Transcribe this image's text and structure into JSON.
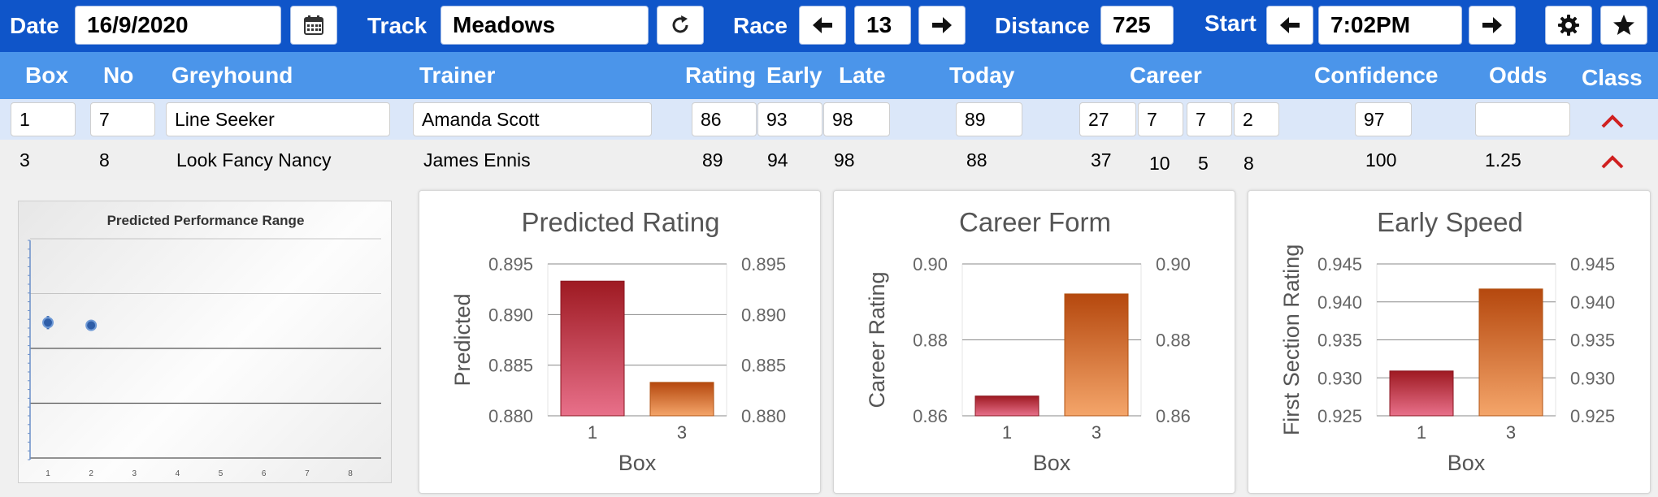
{
  "toolbar": {
    "date_label": "Date",
    "date_value": "16/9/2020",
    "track_label": "Track",
    "track_value": "Meadows",
    "race_label": "Race",
    "race_value": "13",
    "distance_label": "Distance",
    "distance_value": "725",
    "start_label": "Start",
    "start_value": "7:02PM",
    "icons": [
      "calendar-icon",
      "refresh-icon",
      "arrow-left-icon",
      "arrow-right-icon",
      "gear-icon",
      "star-icon"
    ]
  },
  "table": {
    "headers": {
      "box": "Box",
      "no": "No",
      "greyhound": "Greyhound",
      "trainer": "Trainer",
      "rating": "Rating",
      "early": "Early",
      "late": "Late",
      "today": "Today",
      "career": "Career",
      "confidence": "Confidence",
      "odds": "Odds",
      "class": "Class"
    },
    "rows": [
      {
        "box": "1",
        "no": "7",
        "greyhound": "Line Seeker",
        "trainer": "Amanda Scott",
        "rating": "86",
        "early": "93",
        "late": "98",
        "today": "89",
        "career_starts": "27",
        "career_wins": "7",
        "career_seconds": "7",
        "career_thirds": "2",
        "confidence": "97",
        "odds": ""
      },
      {
        "box": "3",
        "no": "8",
        "greyhound": "Look Fancy Nancy",
        "trainer": "James Ennis",
        "rating": "89",
        "early": "94",
        "late": "98",
        "today": "88",
        "career_starts": "37",
        "career_wins": "10",
        "career_seconds": "5",
        "career_thirds": "8",
        "confidence": "100",
        "odds": "1.25"
      }
    ]
  },
  "colors": {
    "topbar": "#0f55c9",
    "header": "#4b95ea",
    "row_selected": "#dbe7f9",
    "row": "#efefef",
    "caret": "#d02020",
    "bar_red": "#b7232e",
    "bar_orange": "#e0731f",
    "range_marker": "#2f5ea8"
  },
  "chart_data": [
    {
      "type": "scatter",
      "title": "Predicted Performance Range",
      "xlabel": "",
      "ylabel": "",
      "x_ticks": [
        "1",
        "2",
        "3",
        "4",
        "5",
        "6",
        "7",
        "8"
      ],
      "points": [
        {
          "x": 1,
          "y": 0.5,
          "low": 0.38,
          "high": 0.62
        },
        {
          "x": 2,
          "y": 0.45,
          "low": 0.36,
          "high": 0.55
        }
      ],
      "ylim": [
        -2,
        2
      ]
    },
    {
      "type": "bar",
      "title": "Predicted Rating",
      "xlabel": "Box",
      "ylabel": "Predicted",
      "categories": [
        "1",
        "3"
      ],
      "values": [
        0.8933,
        0.8833
      ],
      "ylim": [
        0.88,
        0.895
      ],
      "yticks": [
        "0.880",
        "0.885",
        "0.890",
        "0.895"
      ],
      "secondary_axis": true,
      "grid": true
    },
    {
      "type": "bar",
      "title": "Career Form",
      "xlabel": "Box",
      "ylabel": "Career Rating",
      "categories": [
        "1",
        "3"
      ],
      "values": [
        0.8652,
        0.8921
      ],
      "ylim": [
        0.86,
        0.9
      ],
      "yticks": [
        "0.86",
        "0.88",
        "0.90"
      ],
      "secondary_axis": true,
      "grid": true
    },
    {
      "type": "bar",
      "title": "Early Speed",
      "xlabel": "Box",
      "ylabel": "First Section Rating",
      "categories": [
        "1",
        "3"
      ],
      "values": [
        0.9309,
        0.9417
      ],
      "ylim": [
        0.925,
        0.945
      ],
      "yticks": [
        "0.925",
        "0.930",
        "0.935",
        "0.940",
        "0.945"
      ],
      "secondary_axis": true,
      "grid": true
    }
  ]
}
